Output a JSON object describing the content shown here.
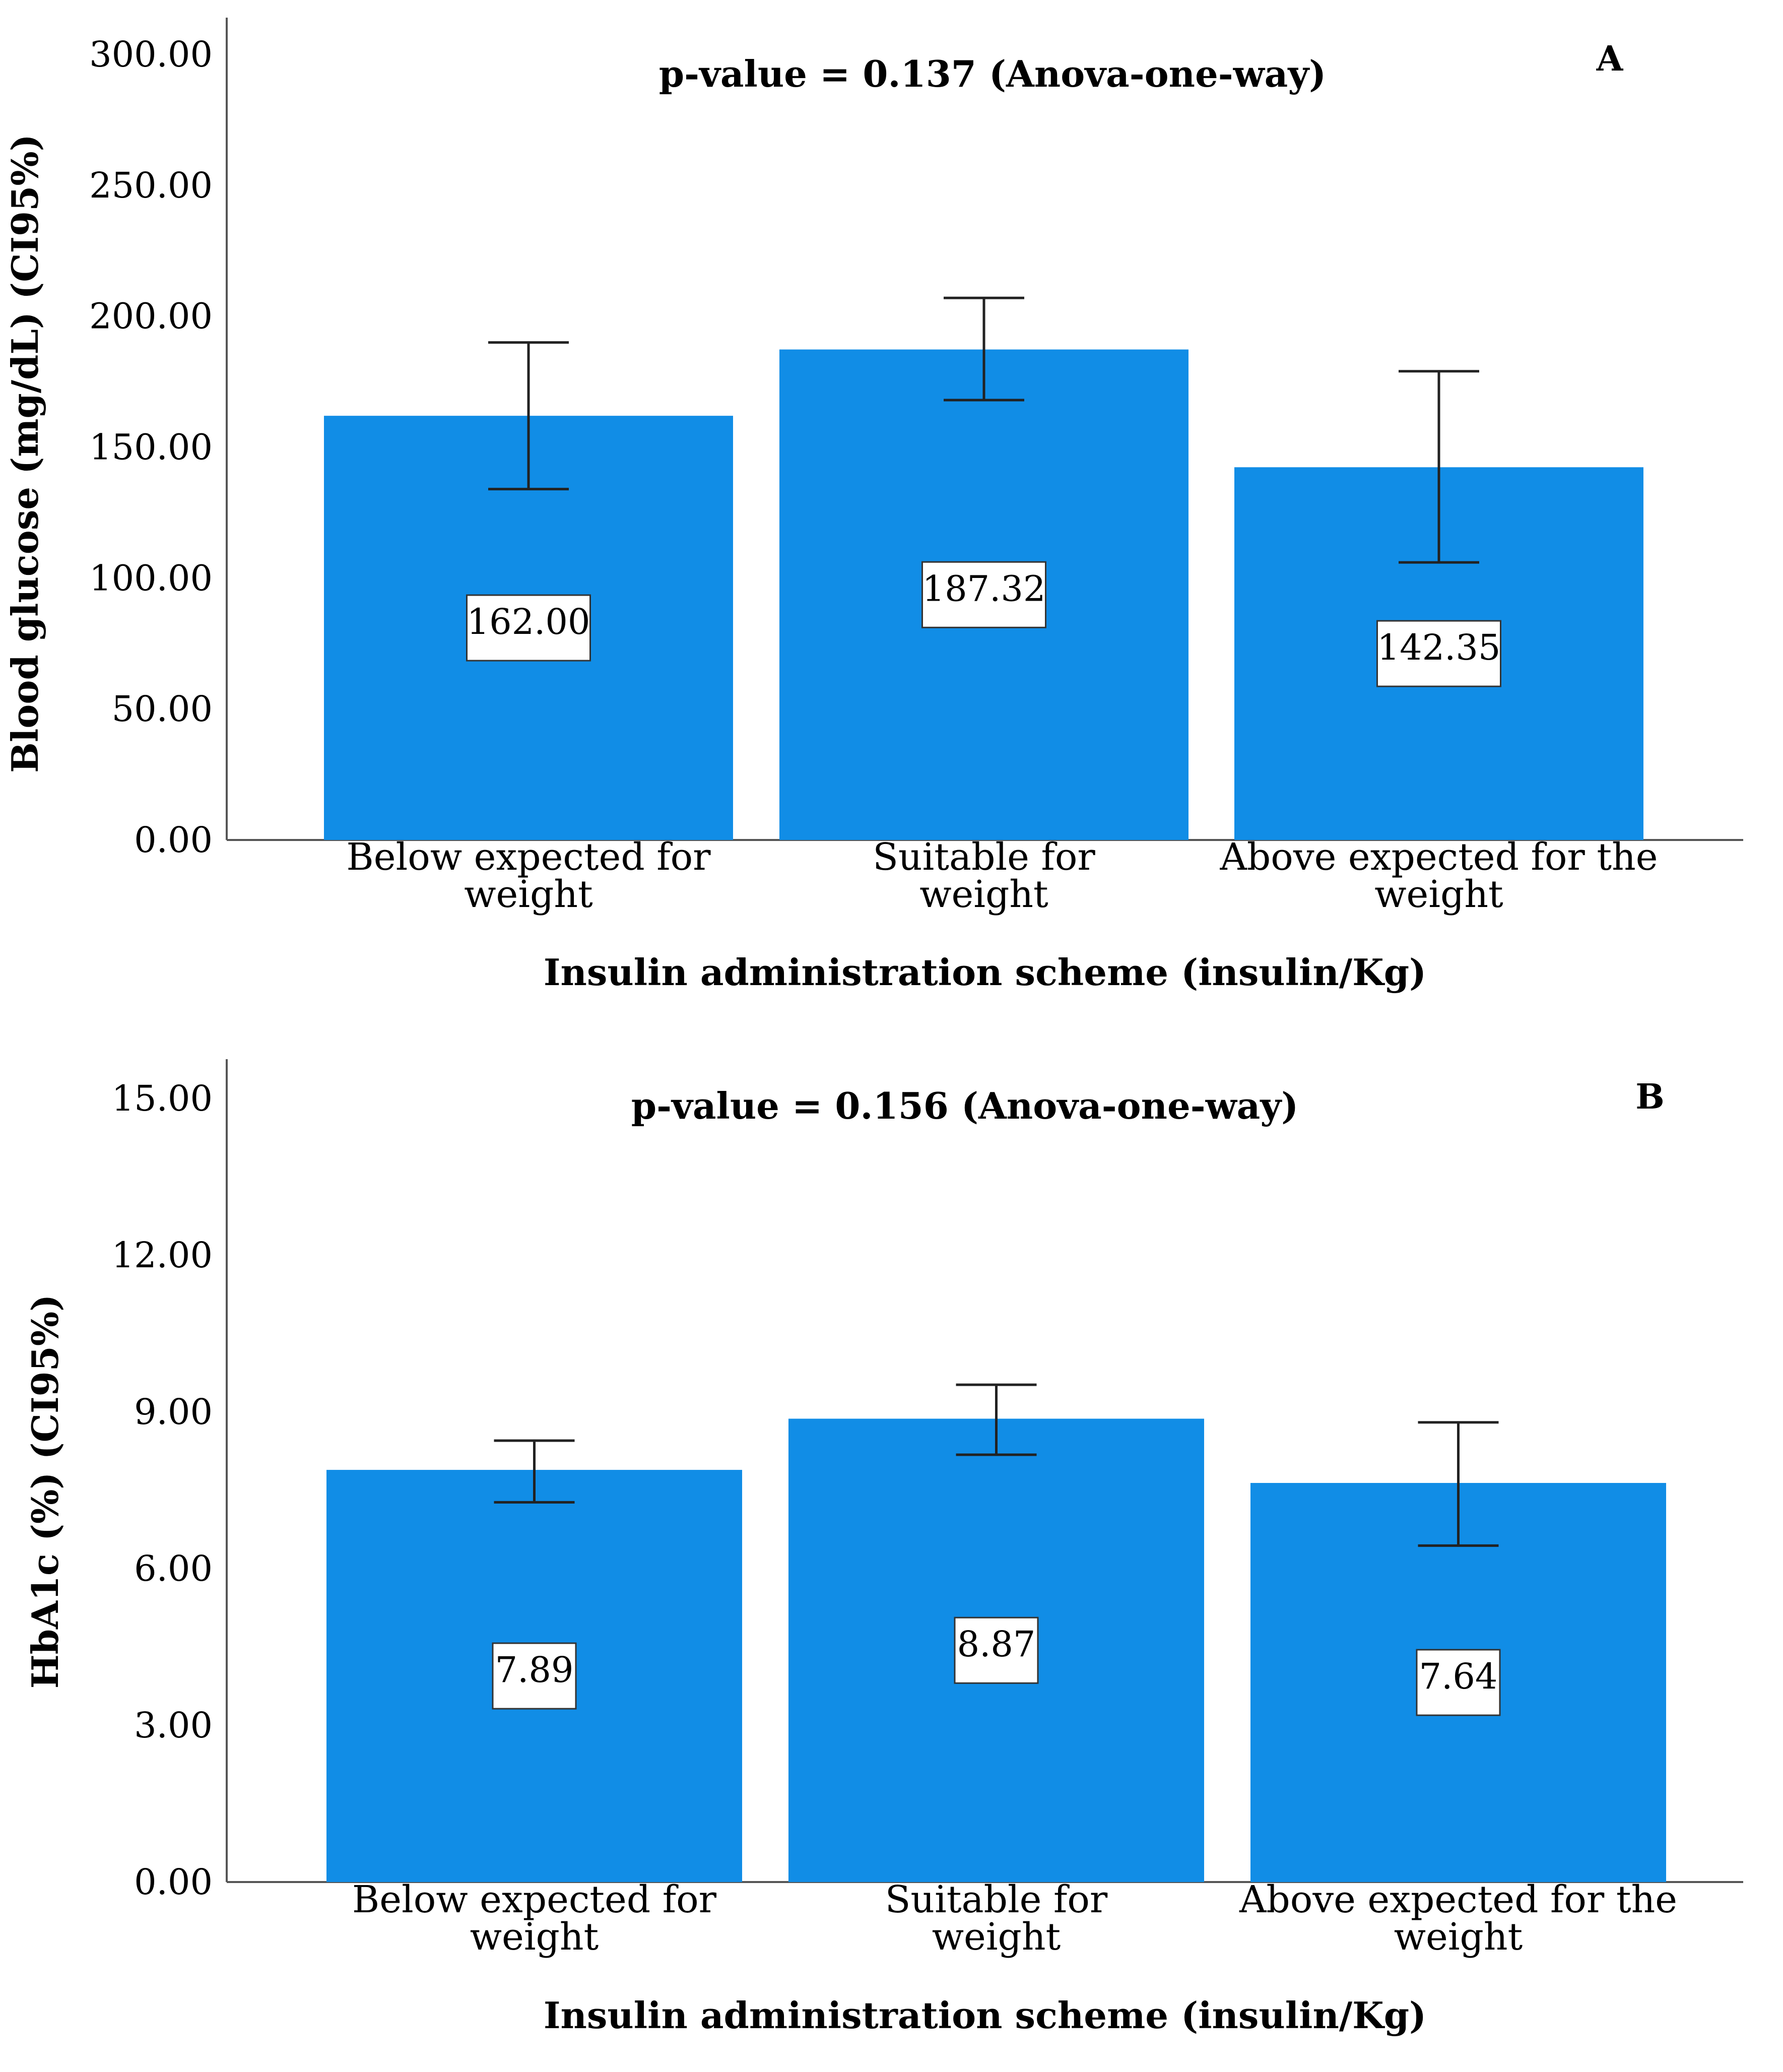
{
  "chart_data": [
    {
      "type": "bar",
      "panel": "A",
      "annotation": "p-value = 0.137 (Anova-one-way)",
      "ylabel": "Blood glucose (mg/dL) (CI95%)",
      "xlabel": "Insulin administration scheme (insulin/Kg)",
      "categories": [
        "Below expected for weight",
        "Suitable for weight",
        "Above expected for the weight"
      ],
      "values": [
        162.0,
        187.32,
        142.35
      ],
      "data_labels": [
        "162.00",
        "187.32",
        "142.35"
      ],
      "error_bars": [
        {
          "low": 134.0,
          "high": 190.0
        },
        {
          "low": 168.0,
          "high": 207.0
        },
        {
          "low": 106.0,
          "high": 179.0
        }
      ],
      "ylim": [
        0,
        300
      ],
      "yticks": [
        "0.00",
        "50.00",
        "100.00",
        "150.00",
        "200.00",
        "250.00",
        "300.00"
      ],
      "bar_color": "#118DE6",
      "grid": false
    },
    {
      "type": "bar",
      "panel": "B",
      "annotation": "p-value = 0.156 (Anova-one-way)",
      "ylabel": "HbA1c (%) (CI95%)",
      "xlabel": "Insulin administration scheme (insulin/Kg)",
      "categories": [
        "Below expected for weight",
        "Suitable for weight",
        "Above expected for the weight"
      ],
      "values": [
        7.89,
        8.87,
        7.64
      ],
      "data_labels": [
        "7.89",
        "8.87",
        "7.64"
      ],
      "error_bars": [
        {
          "low": 7.27,
          "high": 8.45
        },
        {
          "low": 8.18,
          "high": 9.52
        },
        {
          "low": 6.44,
          "high": 8.8
        }
      ],
      "ylim": [
        0,
        15
      ],
      "yticks": [
        "0.00",
        "3.00",
        "6.00",
        "9.00",
        "12.00",
        "15.00"
      ],
      "bar_color": "#118DE6",
      "grid": false
    }
  ]
}
